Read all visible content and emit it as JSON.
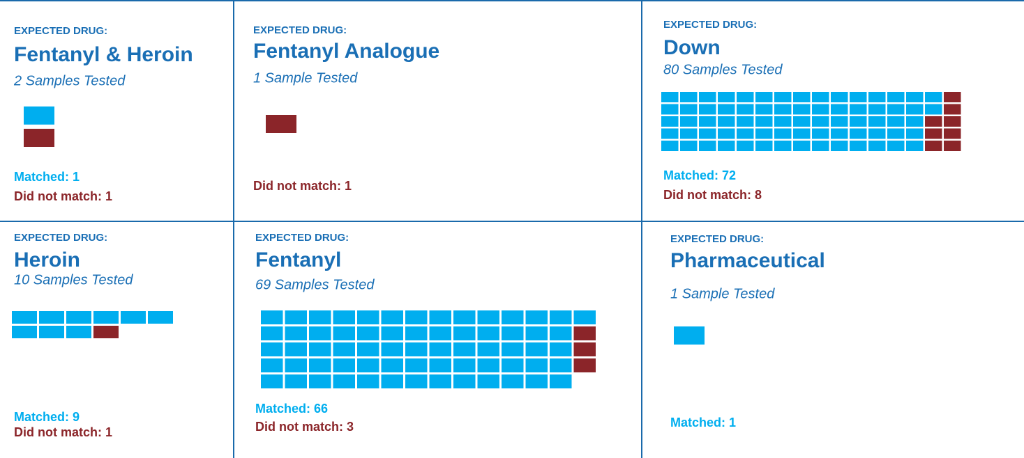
{
  "chart_data": [
    {
      "type": "waffle",
      "label": "EXPECTED DRUG:",
      "title": "Fentanyl & Heroin",
      "subtitle": "2 Samples Tested",
      "values": [
        1,
        1
      ],
      "value_labels": [
        "Matched: 1",
        "Did not match: 1"
      ],
      "colors": [
        "#00aeef",
        "#8b2529"
      ]
    },
    {
      "type": "waffle",
      "label": "EXPECTED DRUG:",
      "title": "Fentanyl Analogue",
      "subtitle": "1 Sample Tested",
      "values": [
        1
      ],
      "value_labels": [
        "Did not match: 1"
      ],
      "colors": [
        "#8b2529"
      ]
    },
    {
      "type": "waffle",
      "label": "EXPECTED DRUG:",
      "title": "Down",
      "subtitle": "80 Samples Tested",
      "values": [
        72,
        8
      ],
      "value_labels": [
        "Matched: 72",
        "Did not match: 8"
      ],
      "colors": [
        "#00aeef",
        "#8b2529"
      ]
    },
    {
      "type": "waffle",
      "label": "EXPECTED DRUG:",
      "title": "Heroin",
      "subtitle": "10 Samples Tested",
      "values": [
        9,
        1
      ],
      "value_labels": [
        "Matched: 9",
        "Did not match: 1"
      ],
      "colors": [
        "#00aeef",
        "#8b2529"
      ]
    },
    {
      "type": "waffle",
      "label": "EXPECTED DRUG:",
      "title": "Fentanyl",
      "subtitle": "69 Samples Tested",
      "values": [
        66,
        3
      ],
      "value_labels": [
        "Matched: 66",
        "Did not match: 3"
      ],
      "colors": [
        "#00aeef",
        "#8b2529"
      ]
    },
    {
      "type": "waffle",
      "label": "EXPECTED DRUG:",
      "title": "Pharmaceutical",
      "subtitle": "1 Sample Tested",
      "values": [
        1
      ],
      "value_labels": [
        "Matched: 1"
      ],
      "colors": [
        "#00aeef"
      ]
    }
  ]
}
